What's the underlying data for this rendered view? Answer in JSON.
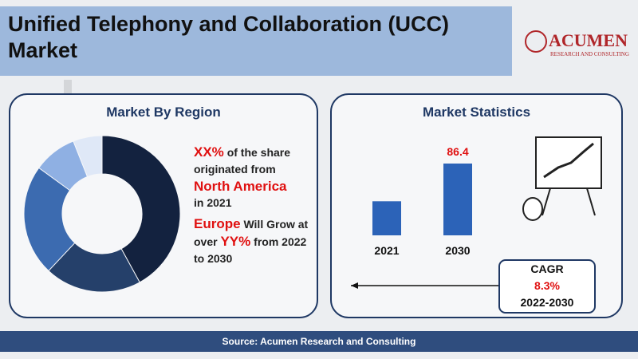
{
  "header": {
    "title": "Unified Telephony and Collaboration (UCC) Market"
  },
  "logo": {
    "name": "ACUMEN",
    "tagline": "RESEARCH AND CONSULTING"
  },
  "region": {
    "title": "Market By Region",
    "donut": {
      "values": [
        42,
        20,
        23,
        9,
        6
      ],
      "colors": [
        "#13223f",
        "#25406a",
        "#3c6bb0",
        "#8fb0e3",
        "#dfe8f7"
      ]
    },
    "share": {
      "value": "XX%",
      "text": "of the share originated from",
      "region": "North America",
      "year": "in 2021"
    },
    "growth": {
      "region": "Europe",
      "text": "Will Grow at over",
      "value": "YY%",
      "period": "from 2022 to 2030"
    }
  },
  "statistics": {
    "title": "Market Statistics",
    "categories": [
      "2021",
      "2030"
    ],
    "values": [
      41,
      86.4
    ],
    "color": "#2c63b8",
    "cagr": {
      "label": "CAGR",
      "value": "8.3%",
      "period": "2022-2030"
    }
  },
  "footer": {
    "source": "Source: Acumen Research and Consulting"
  }
}
